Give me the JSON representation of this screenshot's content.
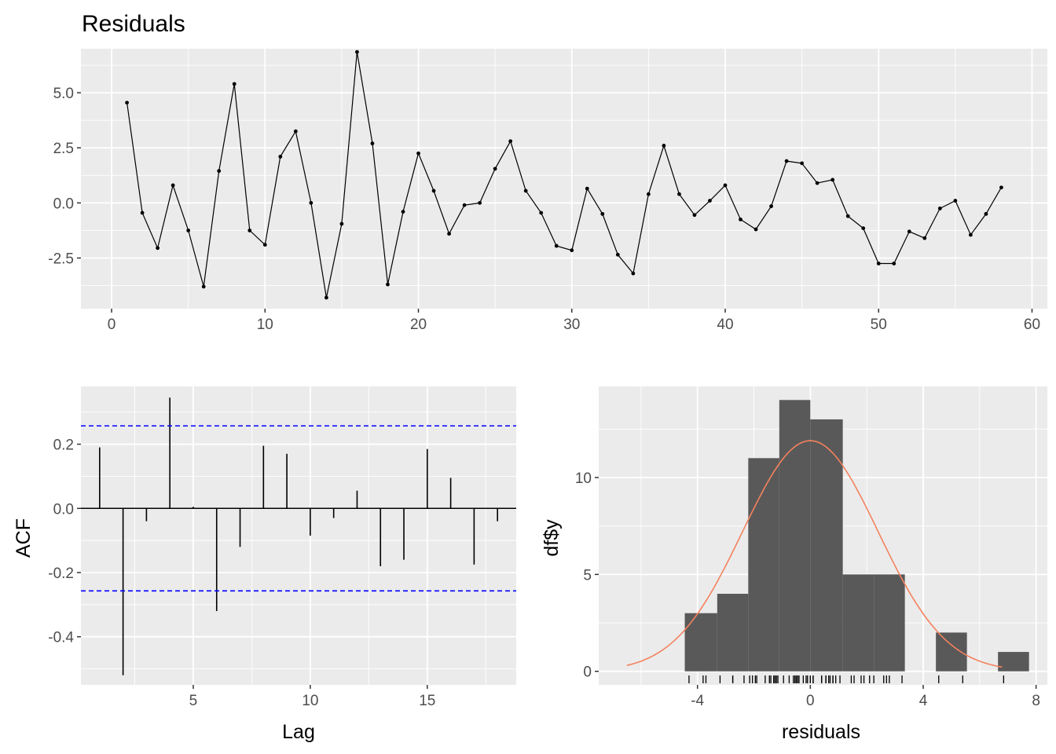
{
  "chart_data": [
    {
      "id": "residuals",
      "type": "line",
      "title": "Residuals",
      "xlabel": "",
      "ylabel": "",
      "xlim": [
        -2,
        61
      ],
      "ylim": [
        -4.8,
        7.0
      ],
      "x_ticks": [
        0,
        10,
        20,
        30,
        40,
        50,
        60
      ],
      "y_ticks": [
        -2.5,
        0.0,
        2.5,
        5.0
      ],
      "y_tick_labels": [
        "-2.5",
        "0.0",
        "2.5",
        "5.0"
      ],
      "grid": true,
      "series": [
        {
          "x": [
            1,
            2,
            3,
            4,
            5,
            6,
            7,
            8,
            9,
            10,
            11,
            12,
            13,
            14,
            15,
            16,
            17,
            18,
            19,
            20,
            21,
            22,
            23,
            24,
            25,
            26,
            27,
            28,
            29,
            30,
            31,
            32,
            33,
            34,
            35,
            36,
            37,
            38,
            39,
            40,
            41,
            42,
            43,
            44,
            45,
            46,
            47,
            48,
            49,
            50,
            51,
            52,
            53,
            54,
            55,
            56,
            57,
            58
          ],
          "y": [
            4.55,
            -0.45,
            -2.05,
            0.8,
            -1.25,
            -3.8,
            1.45,
            5.4,
            -1.25,
            -1.9,
            2.1,
            3.25,
            0.0,
            -4.3,
            -0.95,
            6.85,
            2.7,
            -3.7,
            -0.4,
            2.25,
            0.55,
            -1.4,
            -0.1,
            0.0,
            1.55,
            2.8,
            0.55,
            -0.45,
            -1.95,
            -2.15,
            0.65,
            -0.5,
            -2.35,
            -3.2,
            0.4,
            2.6,
            0.4,
            -0.55,
            0.1,
            0.8,
            -0.75,
            -1.2,
            -0.15,
            1.9,
            1.8,
            0.9,
            1.05,
            -0.6,
            -1.15,
            -2.75,
            -2.75,
            -1.3,
            -1.6,
            -0.25,
            0.1,
            -1.45,
            -0.5,
            0.7
          ]
        }
      ]
    },
    {
      "id": "acf",
      "type": "bar",
      "title": "",
      "xlabel": "Lag",
      "ylabel": "ACF",
      "xlim": [
        0.2,
        18.8
      ],
      "ylim": [
        -0.55,
        0.38
      ],
      "x_ticks": [
        5,
        10,
        15
      ],
      "y_ticks": [
        -0.4,
        -0.2,
        0.0,
        0.2
      ],
      "y_tick_labels": [
        "-0.4",
        "-0.2",
        "0.0",
        "0.2"
      ],
      "lags": [
        1,
        2,
        3,
        4,
        5,
        6,
        7,
        8,
        9,
        10,
        11,
        12,
        13,
        14,
        15,
        16,
        17,
        18
      ],
      "values": [
        0.19,
        -0.52,
        -0.04,
        0.345,
        0.005,
        -0.32,
        -0.12,
        0.195,
        0.17,
        -0.085,
        -0.03,
        0.055,
        -0.18,
        -0.16,
        0.185,
        0.095,
        -0.175,
        -0.04
      ],
      "confidence_bounds": [
        0.257,
        -0.257
      ],
      "bound_color": "#0000ff",
      "grid": true
    },
    {
      "id": "histogram",
      "type": "bar",
      "title": "",
      "xlabel": "residuals",
      "ylabel": "df$y",
      "xlim": [
        -7.5,
        8.4
      ],
      "ylim": [
        -0.7,
        14.7
      ],
      "x_ticks": [
        -4,
        0,
        4,
        8
      ],
      "x_tick_labels": [
        "-4",
        "0",
        "4",
        "8"
      ],
      "y_ticks": [
        0,
        5,
        10
      ],
      "bin_edges": [
        -4.45,
        -3.3,
        -2.2,
        -1.1,
        0.0,
        1.15,
        2.25,
        3.35,
        4.45,
        5.55,
        6.65,
        7.75
      ],
      "counts": [
        3,
        4,
        11,
        14,
        13,
        5,
        5,
        0,
        2,
        0,
        1
      ],
      "bar_color": "#595959",
      "density_curve": {
        "mean": 0.0,
        "sd": 2.4,
        "scale": 11.9,
        "color": "#f4825e",
        "x_range": [
          -6.5,
          6.8
        ]
      },
      "rug": [
        -4.3,
        -3.8,
        -3.7,
        -3.2,
        -2.75,
        -2.75,
        -2.35,
        -2.15,
        -2.05,
        -1.95,
        -1.9,
        -1.6,
        -1.45,
        -1.4,
        -1.3,
        -1.25,
        -1.25,
        -1.2,
        -1.15,
        -0.95,
        -0.75,
        -0.6,
        -0.55,
        -0.5,
        -0.5,
        -0.45,
        -0.45,
        -0.4,
        -0.25,
        -0.15,
        -0.1,
        0.0,
        0.0,
        0.1,
        0.1,
        0.4,
        0.4,
        0.55,
        0.55,
        0.65,
        0.7,
        0.8,
        0.8,
        0.9,
        1.05,
        1.45,
        1.55,
        1.8,
        1.9,
        2.1,
        2.25,
        2.6,
        2.7,
        2.8,
        3.25,
        4.55,
        5.4,
        6.85
      ],
      "grid": true
    }
  ]
}
